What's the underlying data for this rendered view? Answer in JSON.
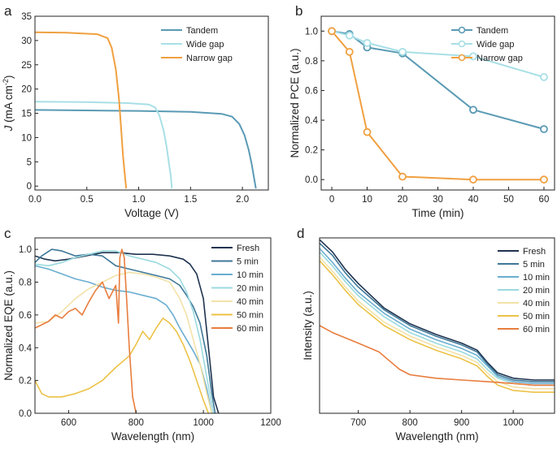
{
  "chart_data": [
    {
      "panel": "a",
      "type": "line",
      "xlabel": "Voltage (V)",
      "ylabel_parts": [
        "J",
        " (mA cm",
        "-2",
        ")"
      ],
      "xlim": [
        0,
        2.25
      ],
      "ylim": [
        -0.8,
        35
      ],
      "xticks": [
        0.0,
        0.5,
        1.0,
        1.5,
        2.0
      ],
      "xtick_labels": [
        "0.0",
        "0.5",
        "1.0",
        "1.5",
        "2.0"
      ],
      "yticks": [
        0,
        5,
        10,
        15,
        20,
        25,
        30,
        35
      ],
      "legend_position": "top-right",
      "series": [
        {
          "name": "Tandem",
          "color": "#5a9ab4",
          "x": [
            0,
            0.5,
            1.0,
            1.5,
            1.8,
            1.9,
            1.97,
            2.02,
            2.06,
            2.09,
            2.11,
            2.13
          ],
          "y": [
            15.7,
            15.6,
            15.5,
            15.3,
            14.9,
            14.3,
            12.8,
            10.5,
            7.5,
            4.5,
            2.0,
            -0.5
          ]
        },
        {
          "name": "Wide gap",
          "color": "#a8dfe6",
          "x": [
            0,
            0.5,
            0.9,
            1.1,
            1.16,
            1.2,
            1.24,
            1.27,
            1.29,
            1.31,
            1.32
          ],
          "y": [
            17.4,
            17.3,
            17.1,
            16.8,
            16.2,
            14.5,
            11.5,
            8.0,
            5.0,
            2.0,
            -0.5
          ]
        },
        {
          "name": "Narrow gap",
          "color": "#f0a040",
          "x": [
            0,
            0.3,
            0.6,
            0.7,
            0.74,
            0.78,
            0.81,
            0.83,
            0.85,
            0.87,
            0.88
          ],
          "y": [
            31.7,
            31.6,
            31.3,
            30.5,
            28.5,
            24.0,
            18.0,
            12.0,
            6.0,
            1.5,
            -0.5
          ]
        }
      ]
    },
    {
      "panel": "b",
      "type": "line",
      "xlabel": "Time (min)",
      "ylabel": "Normalized PCE (a.u.)",
      "xlim": [
        -3,
        63
      ],
      "ylim": [
        -0.07,
        1.1
      ],
      "xticks": [
        0,
        10,
        20,
        30,
        40,
        50,
        60
      ],
      "yticks": [
        0.0,
        0.2,
        0.4,
        0.6,
        0.8,
        1.0
      ],
      "ytick_labels": [
        "0.0",
        "0.2",
        "0.4",
        "0.6",
        "0.8",
        "1.0"
      ],
      "legend_position": "top-right",
      "series": [
        {
          "name": "Tandem",
          "color": "#5a9ab4",
          "x": [
            0,
            5,
            10,
            20,
            40,
            60
          ],
          "y": [
            1.0,
            0.98,
            0.89,
            0.85,
            0.47,
            0.34
          ]
        },
        {
          "name": "Wide gap",
          "color": "#a8dfe6",
          "x": [
            0,
            5,
            10,
            20,
            40,
            60
          ],
          "y": [
            1.0,
            0.97,
            0.92,
            0.86,
            0.83,
            0.69
          ]
        },
        {
          "name": "Narrow gap",
          "color": "#f0a040",
          "x": [
            0,
            5,
            10,
            20,
            40,
            60
          ],
          "y": [
            1.0,
            0.86,
            0.32,
            0.02,
            0.0,
            0.0
          ]
        }
      ]
    },
    {
      "panel": "c",
      "type": "line",
      "xlabel": "Wavelength (nm)",
      "ylabel": "Normalized EQE (a.u.)",
      "xlim": [
        500,
        1200
      ],
      "ylim": [
        0,
        1.07
      ],
      "xticks": [
        600,
        800,
        1000,
        1200
      ],
      "yticks": [
        0.0,
        0.2,
        0.4,
        0.6,
        0.8,
        1.0
      ],
      "ytick_labels": [
        "0.0",
        "0.2",
        "0.4",
        "0.6",
        "0.8",
        "1.0"
      ],
      "legend_position": "top-right",
      "series": [
        {
          "name": "Fresh",
          "color": "#1f3350",
          "x": [
            500,
            530,
            560,
            600,
            650,
            700,
            750,
            800,
            850,
            900,
            940,
            960,
            980,
            1000,
            1015,
            1030,
            1045
          ],
          "y": [
            0.96,
            0.94,
            0.93,
            0.94,
            0.96,
            0.98,
            0.98,
            0.97,
            0.97,
            0.96,
            0.94,
            0.91,
            0.85,
            0.7,
            0.4,
            0.1,
            0.0
          ]
        },
        {
          "name": "5 min",
          "color": "#3f7898",
          "x": [
            500,
            520,
            550,
            580,
            620,
            660,
            700,
            740,
            780,
            820,
            860,
            900,
            930,
            950,
            970,
            990,
            1010,
            1025,
            1035
          ],
          "y": [
            0.92,
            0.96,
            1.0,
            0.99,
            0.96,
            0.97,
            0.96,
            0.9,
            0.88,
            0.86,
            0.84,
            0.82,
            0.78,
            0.72,
            0.65,
            0.55,
            0.35,
            0.12,
            0.0
          ]
        },
        {
          "name": "10 min",
          "color": "#6aaed0",
          "x": [
            500,
            540,
            580,
            620,
            660,
            700,
            740,
            780,
            820,
            860,
            890,
            910,
            930,
            950,
            970,
            990,
            1010,
            1025
          ],
          "y": [
            0.9,
            0.88,
            0.85,
            0.82,
            0.8,
            0.77,
            0.75,
            0.74,
            0.72,
            0.7,
            0.66,
            0.6,
            0.52,
            0.45,
            0.38,
            0.3,
            0.15,
            0.0
          ]
        },
        {
          "name": "20 min",
          "color": "#9bdadf",
          "x": [
            500,
            540,
            580,
            620,
            660,
            700,
            740,
            780,
            820,
            860,
            900,
            930,
            950,
            970,
            990,
            1010,
            1030
          ],
          "y": [
            0.91,
            0.9,
            0.92,
            0.95,
            0.97,
            0.99,
            0.99,
            0.96,
            0.94,
            0.92,
            0.88,
            0.82,
            0.74,
            0.62,
            0.45,
            0.22,
            0.0
          ]
        },
        {
          "name": "40 min",
          "color": "#f2e2a8",
          "x": [
            500,
            540,
            580,
            620,
            660,
            700,
            740,
            780,
            820,
            860,
            900,
            930,
            950,
            970,
            990,
            1010,
            1025
          ],
          "y": [
            0.55,
            0.56,
            0.62,
            0.7,
            0.76,
            0.8,
            0.84,
            0.86,
            0.85,
            0.83,
            0.8,
            0.7,
            0.6,
            0.45,
            0.3,
            0.12,
            0.0
          ]
        },
        {
          "name": "50 min",
          "color": "#ecc247",
          "x": [
            500,
            520,
            540,
            580,
            620,
            660,
            700,
            740,
            780,
            800,
            820,
            840,
            860,
            880,
            900,
            920,
            940,
            960,
            980,
            1000,
            1015
          ],
          "y": [
            0.2,
            0.12,
            0.1,
            0.1,
            0.12,
            0.15,
            0.2,
            0.28,
            0.35,
            0.42,
            0.5,
            0.45,
            0.52,
            0.58,
            0.55,
            0.5,
            0.42,
            0.32,
            0.2,
            0.08,
            0.0
          ]
        },
        {
          "name": "60 min",
          "color": "#e87d3e",
          "x": [
            500,
            520,
            540,
            560,
            580,
            600,
            620,
            640,
            660,
            680,
            700,
            720,
            740,
            748,
            752,
            758,
            765,
            772,
            780,
            790,
            800
          ],
          "y": [
            0.52,
            0.54,
            0.56,
            0.6,
            0.58,
            0.62,
            0.64,
            0.6,
            0.68,
            0.75,
            0.8,
            0.7,
            0.78,
            0.55,
            0.95,
            1.0,
            0.95,
            0.7,
            0.4,
            0.1,
            0.0
          ]
        }
      ]
    },
    {
      "panel": "d",
      "type": "line",
      "xlabel": "Wavelength (nm)",
      "ylabel": "Intensity (a.u.)",
      "xlim": [
        625,
        1080
      ],
      "ylim": [
        0,
        1.0
      ],
      "xticks": [
        700,
        800,
        900,
        1000
      ],
      "yticks": [],
      "legend_position": "top-right",
      "series": [
        {
          "name": "Fresh",
          "color": "#1f3350",
          "x": [
            625,
            650,
            675,
            700,
            750,
            800,
            850,
            900,
            930,
            950,
            970,
            1000,
            1040,
            1080
          ],
          "y": [
            0.99,
            0.92,
            0.82,
            0.74,
            0.6,
            0.51,
            0.45,
            0.4,
            0.36,
            0.29,
            0.23,
            0.2,
            0.19,
            0.19
          ]
        },
        {
          "name": "5 min",
          "color": "#3f7898",
          "x": [
            625,
            650,
            675,
            700,
            750,
            800,
            850,
            900,
            930,
            950,
            970,
            1000,
            1040,
            1080
          ],
          "y": [
            0.97,
            0.9,
            0.8,
            0.72,
            0.59,
            0.5,
            0.44,
            0.39,
            0.35,
            0.28,
            0.22,
            0.19,
            0.18,
            0.18
          ]
        },
        {
          "name": "10 min",
          "color": "#6aaed0",
          "x": [
            625,
            650,
            675,
            700,
            750,
            800,
            850,
            900,
            930,
            950,
            970,
            1000,
            1040,
            1080
          ],
          "y": [
            0.94,
            0.86,
            0.77,
            0.69,
            0.57,
            0.48,
            0.42,
            0.37,
            0.33,
            0.27,
            0.21,
            0.18,
            0.17,
            0.17
          ]
        },
        {
          "name": "20 min",
          "color": "#9bdadf",
          "x": [
            625,
            650,
            675,
            700,
            750,
            800,
            850,
            900,
            930,
            950,
            970,
            1000,
            1040,
            1080
          ],
          "y": [
            0.92,
            0.84,
            0.75,
            0.67,
            0.55,
            0.46,
            0.4,
            0.35,
            0.31,
            0.25,
            0.2,
            0.17,
            0.16,
            0.16
          ]
        },
        {
          "name": "40 min",
          "color": "#f2e2a8",
          "x": [
            625,
            650,
            675,
            700,
            750,
            800,
            850,
            900,
            930,
            950,
            970,
            1000,
            1040,
            1080
          ],
          "y": [
            0.89,
            0.81,
            0.72,
            0.64,
            0.52,
            0.44,
            0.38,
            0.33,
            0.29,
            0.23,
            0.18,
            0.15,
            0.14,
            0.14
          ]
        },
        {
          "name": "50 min",
          "color": "#ecc247",
          "x": [
            625,
            650,
            675,
            700,
            750,
            800,
            850,
            900,
            930,
            950,
            970,
            1000,
            1040,
            1080
          ],
          "y": [
            0.87,
            0.79,
            0.7,
            0.62,
            0.5,
            0.42,
            0.36,
            0.31,
            0.27,
            0.21,
            0.16,
            0.13,
            0.12,
            0.12
          ]
        },
        {
          "name": "60 min",
          "color": "#e87d3e",
          "x": [
            625,
            650,
            700,
            740,
            760,
            780,
            800,
            850,
            900,
            950,
            1000,
            1040,
            1080
          ],
          "y": [
            0.5,
            0.46,
            0.4,
            0.35,
            0.3,
            0.25,
            0.22,
            0.2,
            0.19,
            0.18,
            0.17,
            0.16,
            0.16
          ]
        }
      ]
    }
  ]
}
